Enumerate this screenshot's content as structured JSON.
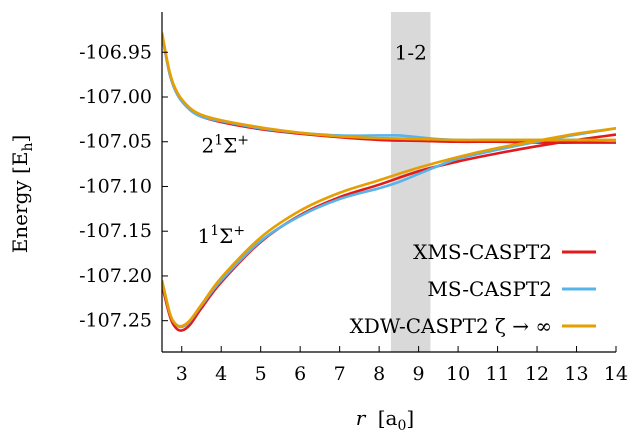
{
  "chart_data": {
    "type": "line",
    "xlabel_var": "r",
    "xlabel_unit": "[a",
    "xlabel_unit_sub": "0",
    "xlabel_unit_close": "]",
    "ylabel_main": "Energy [E",
    "ylabel_sub": "h",
    "ylabel_close": "]",
    "xlim": [
      2.5,
      14
    ],
    "ylim": [
      -107.285,
      -106.905
    ],
    "xticks": [
      3,
      4,
      5,
      6,
      7,
      8,
      9,
      10,
      11,
      12,
      13,
      14
    ],
    "yticks": [
      -106.95,
      -107.0,
      -107.05,
      -107.1,
      -107.15,
      -107.2,
      -107.25
    ],
    "ytick_labels": [
      "-106.95",
      "-107.00",
      "-107.05",
      "-107.10",
      "-107.15",
      "-107.20",
      "-107.25"
    ],
    "grid": false,
    "legend_position": "bottom-right",
    "shaded_region": {
      "x": [
        8.3,
        9.3
      ],
      "label": "1-2",
      "color": "#d9d9d9"
    },
    "annotations": [
      {
        "text": "2",
        "sup": "1",
        "after": "Σ",
        "after_sup": "+",
        "x": 3.5,
        "y": -107.062
      },
      {
        "text": "1",
        "sup": "1",
        "after": "Σ",
        "after_sup": "+",
        "x": 3.4,
        "y": -107.163
      }
    ],
    "series": [
      {
        "name": "XMS-CASPT2",
        "color": "#e31a1c",
        "state1": {
          "x": [
            2.5,
            2.7,
            2.85,
            3.0,
            3.2,
            3.5,
            4,
            5,
            6,
            7,
            8,
            9,
            10,
            11,
            12,
            13,
            14
          ],
          "y": [
            -107.21,
            -107.245,
            -107.258,
            -107.261,
            -107.255,
            -107.236,
            -107.207,
            -107.162,
            -107.132,
            -107.112,
            -107.098,
            -107.083,
            -107.072,
            -107.063,
            -107.055,
            -107.048,
            -107.042
          ]
        },
        "state2": {
          "x": [
            2.5,
            2.7,
            2.9,
            3.2,
            3.5,
            4,
            5,
            6,
            7,
            8,
            9,
            10,
            11,
            12,
            13,
            14
          ],
          "y": [
            -106.93,
            -106.975,
            -106.998,
            -107.014,
            -107.022,
            -107.028,
            -107.036,
            -107.041,
            -107.045,
            -107.048,
            -107.049,
            -107.05,
            -107.05,
            -107.051,
            -107.051,
            -107.051
          ]
        }
      },
      {
        "name": "MS-CASPT2",
        "color": "#56b4e9",
        "state1": {
          "x": [
            2.5,
            2.7,
            2.85,
            3.0,
            3.2,
            3.5,
            4,
            5,
            6,
            7,
            8,
            8.5,
            9,
            9.5,
            10,
            11,
            12,
            13,
            14
          ],
          "y": [
            -107.205,
            -107.242,
            -107.254,
            -107.257,
            -107.251,
            -107.233,
            -107.205,
            -107.161,
            -107.133,
            -107.114,
            -107.102,
            -107.095,
            -107.086,
            -107.077,
            -107.069,
            -107.059,
            -107.05,
            -107.042,
            -107.035
          ]
        },
        "state2": {
          "x": [
            2.5,
            2.7,
            2.9,
            3.2,
            3.5,
            4,
            5,
            6,
            7,
            8,
            8.5,
            9,
            9.5,
            10,
            11,
            12,
            13,
            14
          ],
          "y": [
            -106.93,
            -106.975,
            -106.998,
            -107.014,
            -107.022,
            -107.027,
            -107.035,
            -107.04,
            -107.043,
            -107.043,
            -107.043,
            -107.045,
            -107.047,
            -107.048,
            -107.048,
            -107.048,
            -107.048,
            -107.049
          ]
        }
      },
      {
        "name": "XDW-CASPT2 ζ → ∞",
        "color": "#e69f00",
        "state1": {
          "x": [
            2.5,
            2.7,
            2.85,
            3.0,
            3.2,
            3.5,
            4,
            5,
            6,
            7,
            8,
            9,
            10,
            11,
            12,
            13,
            14
          ],
          "y": [
            -107.205,
            -107.242,
            -107.254,
            -107.256,
            -107.25,
            -107.232,
            -107.202,
            -107.157,
            -107.127,
            -107.107,
            -107.093,
            -107.079,
            -107.067,
            -107.057,
            -107.049,
            -107.041,
            -107.035
          ]
        },
        "state2": {
          "x": [
            2.5,
            2.7,
            2.9,
            3.2,
            3.5,
            4,
            5,
            6,
            7,
            8,
            9,
            10,
            11,
            12,
            13,
            14
          ],
          "y": [
            -106.928,
            -106.973,
            -106.996,
            -107.012,
            -107.02,
            -107.026,
            -107.034,
            -107.04,
            -107.044,
            -107.046,
            -107.047,
            -107.048,
            -107.048,
            -107.048,
            -107.048,
            -107.048
          ]
        }
      }
    ]
  }
}
